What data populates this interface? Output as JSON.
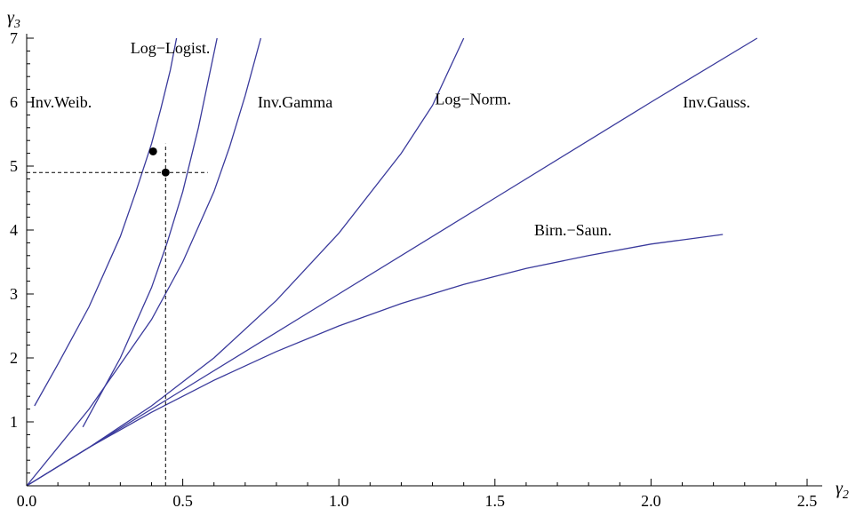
{
  "chart_data": {
    "type": "line",
    "xaxis_title": {
      "main": "γ",
      "sub": "2"
    },
    "yaxis_title": {
      "main": "γ",
      "sub": "3"
    },
    "xlim": [
      0,
      2.5
    ],
    "ylim": [
      0,
      7
    ],
    "xticks": [
      "0.0",
      "0.5",
      "1.0",
      "1.5",
      "2.0",
      "2.5"
    ],
    "yticks": [
      "1",
      "2",
      "3",
      "4",
      "5",
      "6",
      "7"
    ],
    "grid": false,
    "series": [
      {
        "name": "Inv.Weib.",
        "x": [
          0.025,
          0.1,
          0.2,
          0.3,
          0.35,
          0.4,
          0.43,
          0.46,
          0.48
        ],
        "y": [
          1.25,
          1.9,
          2.8,
          3.9,
          4.6,
          5.35,
          5.9,
          6.5,
          7.0
        ]
      },
      {
        "name": "Log−Logist.",
        "x": [
          0.18,
          0.3,
          0.4,
          0.45,
          0.5,
          0.55,
          0.58,
          0.61
        ],
        "y": [
          0.92,
          2.0,
          3.1,
          3.8,
          4.6,
          5.6,
          6.3,
          7.0
        ]
      },
      {
        "name": "Inv.Gamma",
        "x": [
          0.0,
          0.1,
          0.2,
          0.3,
          0.4,
          0.5,
          0.6,
          0.65,
          0.7,
          0.75
        ],
        "y": [
          0.0,
          0.6,
          1.2,
          1.9,
          2.6,
          3.5,
          4.6,
          5.3,
          6.1,
          7.0
        ]
      },
      {
        "name": "Log−Norm.",
        "x": [
          0.0,
          0.2,
          0.4,
          0.6,
          0.8,
          1.0,
          1.2,
          1.3,
          1.4
        ],
        "y": [
          0.0,
          0.6,
          1.25,
          2.0,
          2.9,
          3.95,
          5.2,
          5.95,
          7.0
        ]
      },
      {
        "name": "Inv.Gauss.",
        "x": [
          0.0,
          0.5,
          1.0,
          1.5,
          2.0,
          2.34
        ],
        "y": [
          0.0,
          1.5,
          3.0,
          4.5,
          6.0,
          7.0
        ]
      },
      {
        "name": "Birn.−Saun.",
        "x": [
          0.0,
          0.2,
          0.4,
          0.6,
          0.8,
          1.0,
          1.2,
          1.4,
          1.6,
          1.8,
          2.0,
          2.23
        ],
        "y": [
          0.0,
          0.6,
          1.15,
          1.65,
          2.1,
          2.5,
          2.85,
          3.15,
          3.4,
          3.6,
          3.78,
          3.93
        ]
      }
    ],
    "annotations": [
      {
        "text": "Inv.Weib.",
        "x": 0.11,
        "y": 6.0
      },
      {
        "text": "Log−Logist.",
        "x": 0.46,
        "y": 6.85
      },
      {
        "text": "Inv.Gamma",
        "x": 0.86,
        "y": 6.0
      },
      {
        "text": "Log−Norm.",
        "x": 1.43,
        "y": 6.05
      },
      {
        "text": "Inv.Gauss.",
        "x": 2.21,
        "y": 6.0
      },
      {
        "text": "Birn.−Saun.",
        "x": 1.75,
        "y": 4.0
      }
    ],
    "points": [
      {
        "x": 0.405,
        "y": 5.23
      },
      {
        "x": 0.445,
        "y": 4.9
      }
    ],
    "reference_lines": {
      "vertical": {
        "x": 0.445,
        "y_from": 0,
        "y_to": 5.35
      },
      "horizontal": {
        "y": 4.9,
        "x_from": 0,
        "x_to": 0.58
      }
    }
  }
}
